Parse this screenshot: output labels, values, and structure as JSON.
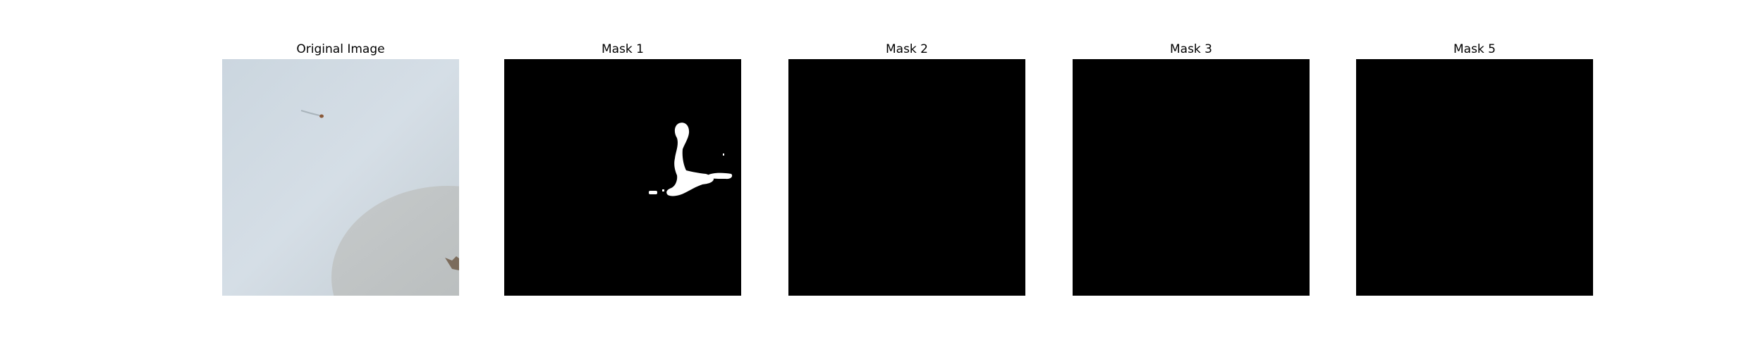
{
  "panels": [
    {
      "title": "Original Image"
    },
    {
      "title": "Mask 1"
    },
    {
      "title": "Mask 2"
    },
    {
      "title": "Mask 3"
    },
    {
      "title": "Mask 5"
    }
  ],
  "colors": {
    "background": "#ffffff",
    "mask_background": "#000000",
    "mask_foreground": "#ffffff",
    "original_wall": "#cfdae2",
    "original_shadow": "#bfc4c5"
  }
}
